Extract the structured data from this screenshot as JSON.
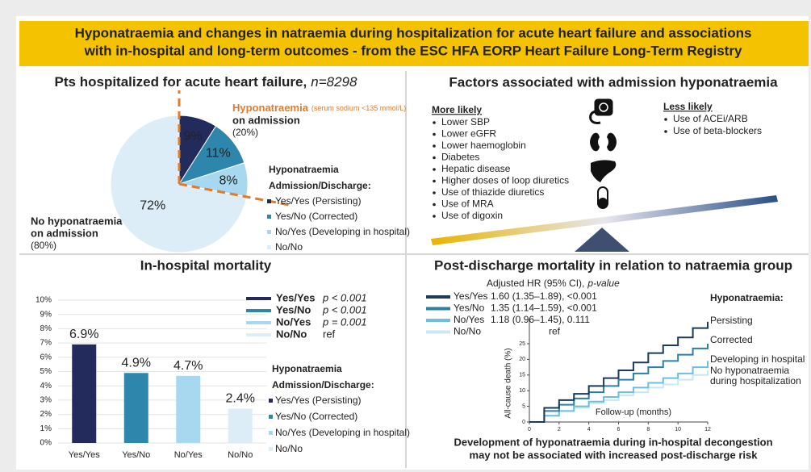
{
  "title": [
    "Hyponatraemia and changes in natraemia during hospitalization for acute heart failure and associations",
    "with in-hospital and long-term outcomes - from the ESC HFA EORP Heart Failure Long-Term Registry"
  ],
  "chart_data": [
    {
      "type": "pie",
      "title": "Pts hospitalized for acute heart failure,",
      "title_n": "n=8298",
      "categories": [
        "Yes/Yes (Persisting)",
        "Yes/No (Corrected)",
        "No/Yes (Developing in hospital)",
        "No/No"
      ],
      "values": [
        9,
        11,
        8,
        72
      ],
      "value_labels": [
        "9%",
        "11%",
        "8%",
        "72%"
      ],
      "colors": [
        "#232a5c",
        "#2f86ad",
        "#a8d8ef",
        "#dcedf8"
      ],
      "legend_title": [
        "Hyponatraemia",
        "Admission/Discharge:"
      ],
      "annotation_hypo": {
        "name": "Hyponatraemia",
        "note": "(serum sodium <135 mmol/L)",
        "line2": "on admission",
        "share": "(20%)"
      },
      "annotation_no": {
        "name": "No hyponatraemia",
        "line2": "on admission",
        "share": "(80%)"
      }
    },
    {
      "type": "bar",
      "title": "In-hospital mortality",
      "categories": [
        "Yes/Yes",
        "Yes/No",
        "No/Yes",
        "No/No"
      ],
      "values": [
        6.9,
        4.9,
        4.7,
        2.4
      ],
      "value_labels": [
        "6.9%",
        "4.9%",
        "4.7%",
        "2.4%"
      ],
      "colors": [
        "#232a5c",
        "#2f86ad",
        "#a8d8ef",
        "#dcedf8"
      ],
      "p_values": [
        "p < 0.001",
        "p < 0.001",
        "p = 0.001",
        "ref"
      ],
      "ylim": [
        0,
        10
      ],
      "yticks": [
        {
          "value": 0,
          "label": "0%"
        },
        {
          "value": 1,
          "label": "1%"
        },
        {
          "value": 2,
          "label": "2%"
        },
        {
          "value": 3,
          "label": "3%"
        },
        {
          "value": 4,
          "label": "4%"
        },
        {
          "value": 5,
          "label": "5%"
        },
        {
          "value": 6,
          "label": "6%"
        },
        {
          "value": 7,
          "label": "7%"
        },
        {
          "value": 8,
          "label": "8%"
        },
        {
          "value": 9,
          "label": "9%"
        },
        {
          "value": 10,
          "label": "10%"
        }
      ],
      "grid": true,
      "legend_title": [
        "Hyponatraemia",
        "Admission/Discharge:"
      ],
      "legend_labels": [
        "Yes/Yes (Persisting)",
        "Yes/No (Corrected)",
        "No/Yes (Developing in hospital)",
        "No/No"
      ]
    },
    {
      "type": "line",
      "title": "Post-discharge mortality in relation to natraemia group",
      "hr_header": "Adjusted HR (95% CI),",
      "hr_header_p": "p-value",
      "x": [
        0,
        1,
        2,
        3,
        4,
        5,
        6,
        7,
        8,
        9,
        10,
        11,
        12
      ],
      "series": [
        {
          "name": "Yes/Yes",
          "color": "#1b3a5c",
          "hr": "1.60 (1.35–1.89), <0.001",
          "end_label": [
            "Persisting"
          ],
          "values": [
            0,
            4.5,
            7,
            9,
            11.5,
            14,
            16.5,
            19,
            22,
            24.5,
            27,
            30,
            32
          ]
        },
        {
          "name": "Yes/No",
          "color": "#2c7fa6",
          "hr": "1.35 (1.14–1.59), <0.001",
          "end_label": [
            "Corrected"
          ],
          "values": [
            0,
            3.5,
            5.5,
            7.5,
            9.5,
            11.5,
            13.5,
            15.5,
            17.5,
            19.5,
            21.5,
            23.5,
            25
          ]
        },
        {
          "name": "No/Yes",
          "color": "#6dbfe0",
          "hr": "1.18 (0.96–1.45), 0.111",
          "end_label": [
            "Developing in hospital"
          ],
          "values": [
            0,
            2,
            3.5,
            5,
            6.5,
            8,
            9.5,
            11,
            12.5,
            14,
            15.5,
            17.5,
            19.5
          ]
        },
        {
          "name": "No/No",
          "color": "#cbe6f4",
          "hr": "ref",
          "end_label": [
            "No hyponatraemia",
            "during hospitalization"
          ],
          "values": [
            0,
            2,
            3.5,
            4.5,
            6,
            7,
            8.5,
            9.5,
            11,
            12,
            13.5,
            15,
            16.5
          ]
        }
      ],
      "xlim": [
        0,
        12
      ],
      "xticks": [
        0,
        2,
        4,
        6,
        8,
        10,
        12
      ],
      "ylim": [
        0,
        33
      ],
      "yticks": [
        0,
        5,
        10,
        15,
        20,
        25
      ],
      "xlabel": "Follow-up (months)",
      "ylabel": "All-cause death (%)",
      "end_label_title": "Hyponatraemia:",
      "footer": [
        "Development of hyponatraemia during in-hospital decongestion",
        "may not be associated with increased post-discharge risk"
      ]
    }
  ],
  "factors": {
    "title": "Factors associated with admission hyponatraemia",
    "more_title": "More likely",
    "more": [
      "Lower SBP",
      "Lower eGFR",
      "Lower haemoglobin",
      "Diabetes",
      "Hepatic disease",
      "Higher doses of loop diuretics",
      "Use of thiazide diuretics",
      "Use of MRA",
      "Use of digoxin"
    ],
    "less_title": "Less likely",
    "less": [
      "Use of ACEi/ARB",
      "Use of beta-blockers"
    ]
  }
}
